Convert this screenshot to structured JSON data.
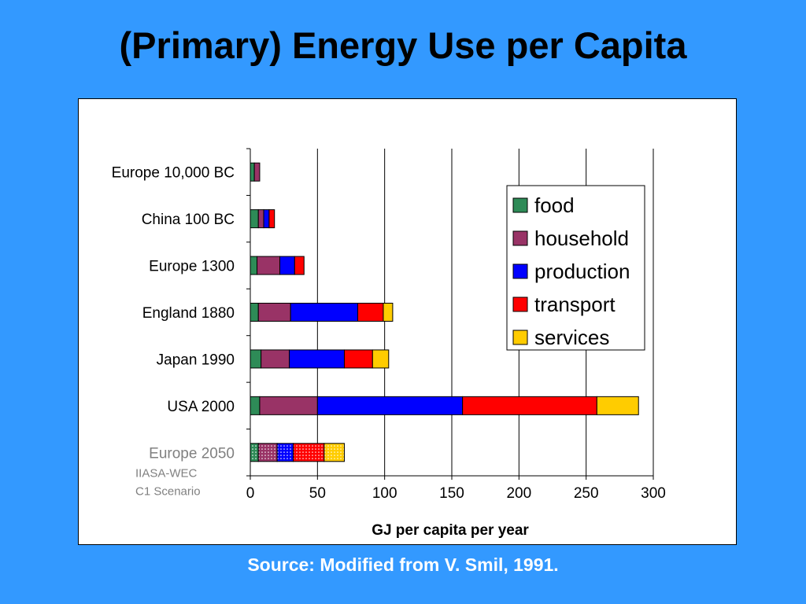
{
  "slide": {
    "title": "(Primary) Energy Use per Capita",
    "source": "Source: Modified from V. Smil, 1991."
  },
  "chart_data": {
    "type": "bar",
    "orientation": "horizontal",
    "stacked": true,
    "categories": [
      "Europe 10,000 BC",
      "China 100 BC",
      "Europe 1300",
      "England 1880",
      "Japan 1990",
      "USA 2000",
      "Europe 2050"
    ],
    "category_sublabels": {
      "Europe 2050": [
        "IIASA-WEC",
        "C1 Scenario"
      ]
    },
    "highlighted_category": "Europe 2050",
    "series": [
      {
        "name": "food",
        "color": "#2e8b57",
        "values": [
          3,
          6,
          5,
          6,
          8,
          7,
          6
        ]
      },
      {
        "name": "household",
        "color": "#993366",
        "values": [
          4,
          4,
          17,
          24,
          21,
          43,
          14
        ]
      },
      {
        "name": "production",
        "color": "#0000ff",
        "values": [
          0,
          4,
          11,
          50,
          41,
          108,
          12
        ]
      },
      {
        "name": "transport",
        "color": "#ff0000",
        "values": [
          0,
          4,
          7,
          19,
          21,
          100,
          23
        ]
      },
      {
        "name": "services",
        "color": "#ffcc00",
        "values": [
          0,
          0,
          0,
          7,
          12,
          31,
          15
        ]
      }
    ],
    "xlabel": "GJ per capita per year",
    "xlim": [
      0,
      300
    ],
    "xticks": [
      0,
      50,
      100,
      150,
      200,
      250,
      300
    ],
    "grid": "vertical",
    "legend_position": "right",
    "highlight_fill": "dotted"
  }
}
